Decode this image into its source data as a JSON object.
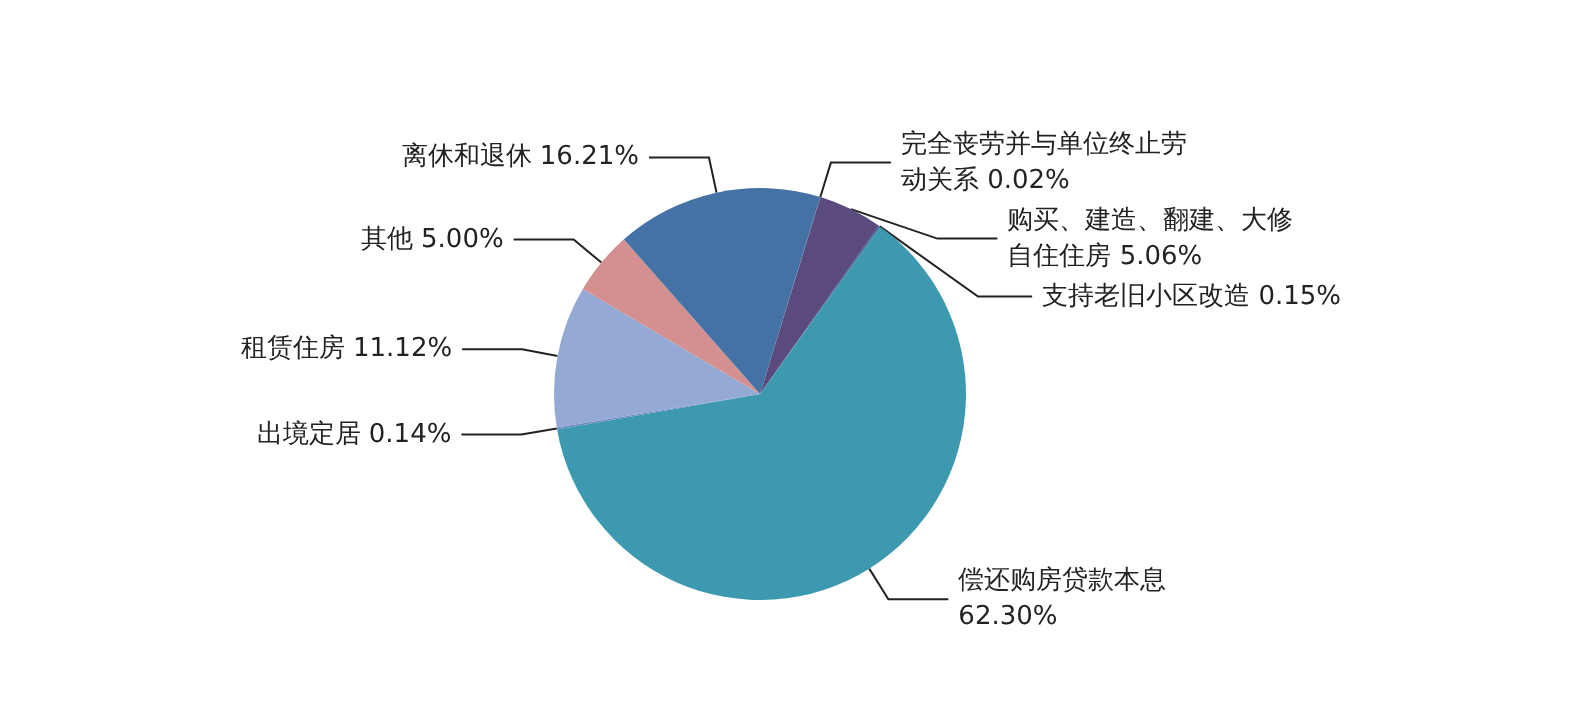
{
  "chart_data": {
    "type": "pie",
    "categories": [
      "完全丧劳并与单位终止劳动关系",
      "购买、建造、翻建、大修自住住房",
      "支持老旧小区改造",
      "偿还购房贷款本息",
      "出境定居",
      "租赁住房",
      "其他",
      "离休和退休"
    ],
    "values": [
      0.02,
      5.06,
      0.15,
      62.3,
      0.14,
      11.12,
      5.0,
      16.21
    ],
    "colors": [
      "#4a5a8c",
      "#5b4a7c",
      "#3f6f9a",
      "#3d99b0",
      "#6a8cc0",
      "#94a9d4",
      "#d49090",
      "#4472a4"
    ],
    "value_labels": [
      "0.02%",
      "5.06%",
      "0.15%",
      "62.30%",
      "0.14%",
      "11.12%",
      "5.00%",
      "16.21%"
    ],
    "legend": false
  }
}
